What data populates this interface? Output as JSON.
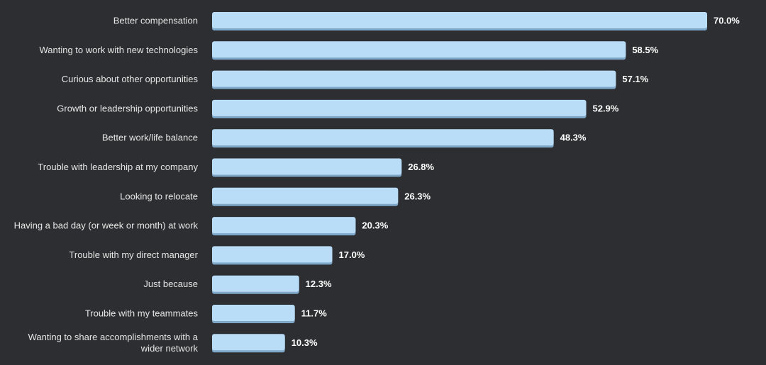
{
  "colors": {
    "background": "#2d2e31",
    "bar": "#b9dcf7",
    "bar_shadow": "#7fa7c8",
    "label": "#e6e6e6",
    "value_label": "#ffffff"
  },
  "chart_data": {
    "type": "bar",
    "orientation": "horizontal",
    "categories": [
      "Better compensation",
      "Wanting to work with new technologies",
      "Curious about other opportunities",
      "Growth or leadership opportunities",
      "Better work/life balance",
      "Trouble with leadership at my company",
      "Looking to relocate",
      "Having a bad day (or week or month) at work",
      "Trouble with my direct manager",
      "Just because",
      "Trouble with my teammates",
      "Wanting to share accomplishments with a wider network"
    ],
    "category_lines": [
      [
        "Better compensation"
      ],
      [
        "Wanting to work with new technologies"
      ],
      [
        "Curious about other opportunities"
      ],
      [
        "Growth or leadership opportunities"
      ],
      [
        "Better work/life balance"
      ],
      [
        "Trouble with leadership at my company"
      ],
      [
        "Looking to relocate"
      ],
      [
        "Having a bad day (or week or month) at work"
      ],
      [
        "Trouble with my direct manager"
      ],
      [
        "Just because"
      ],
      [
        "Trouble with my teammates"
      ],
      [
        "Wanting to share accomplishments with a",
        "wider network"
      ]
    ],
    "values": [
      70.0,
      58.5,
      57.1,
      52.9,
      48.3,
      26.8,
      26.3,
      20.3,
      17.0,
      12.3,
      11.7,
      10.3
    ],
    "value_labels": [
      "70.0%",
      "58.5%",
      "57.1%",
      "52.9%",
      "48.3%",
      "26.8%",
      "26.3%",
      "20.3%",
      "17.0%",
      "12.3%",
      "11.7%",
      "10.3%"
    ],
    "unit": "%",
    "xlim": [
      0,
      70
    ],
    "grid": false,
    "legend": "none"
  }
}
